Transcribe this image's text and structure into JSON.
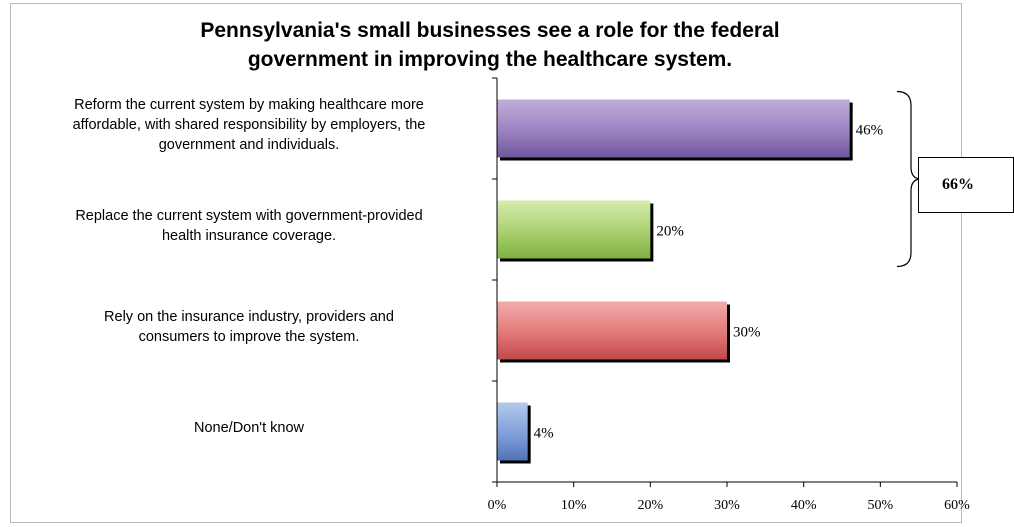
{
  "chart_data": {
    "type": "bar",
    "orientation": "horizontal",
    "title_lines": [
      "Pennsylvania's small businesses see a role for the federal",
      "government in improving the healthcare system."
    ],
    "categories": [
      [
        "Reform the current system by making healthcare more",
        "affordable, with shared responsibility by employers, the",
        "government and individuals."
      ],
      [
        "Replace the current system with government-provided",
        "health insurance coverage."
      ],
      [
        "Rely on the insurance industry, providers and",
        "consumers to improve the system."
      ],
      [
        "None/Don't know"
      ]
    ],
    "values": [
      46,
      20,
      30,
      4
    ],
    "value_labels": [
      "46%",
      "20%",
      "30%",
      "4%"
    ],
    "bar_colors": [
      [
        "#c0aed8",
        "#9a82c0",
        "#6f559c"
      ],
      [
        "#d6ecae",
        "#a9d06e",
        "#7eb042"
      ],
      [
        "#f3acac",
        "#e27878",
        "#c14848"
      ],
      [
        "#b5c9ec",
        "#7f9fd8",
        "#4f73b5"
      ]
    ],
    "xlim": [
      0,
      60
    ],
    "x_ticks": [
      0,
      10,
      20,
      30,
      40,
      50,
      60
    ],
    "x_tick_labels": [
      "0%",
      "10%",
      "20%",
      "30%",
      "40%",
      "50%",
      "60%"
    ],
    "grid": false,
    "callout": {
      "label": "66%",
      "spans_categories": [
        0,
        1
      ]
    }
  }
}
